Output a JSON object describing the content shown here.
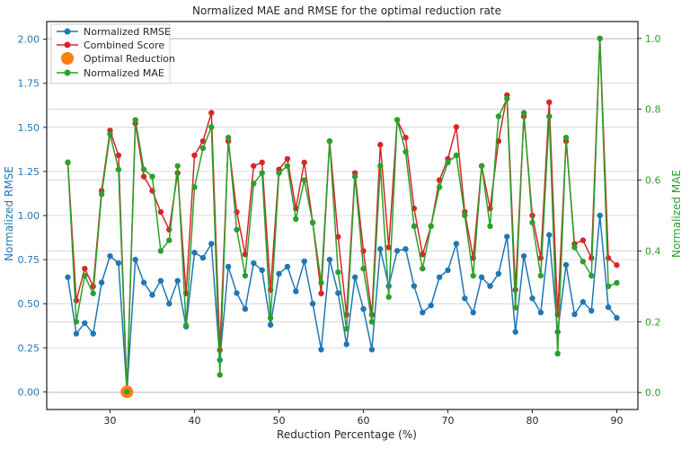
{
  "chart_data": {
    "type": "line",
    "title": "Normalized MAE and RMSE for the optimal reduction rate",
    "xlabel": "Reduction Percentage (%)",
    "ylabel": "Normalized RMSE",
    "y2label": "Normalized MAE",
    "xlim": [
      22.5,
      92.5
    ],
    "ylim": [
      -0.1,
      2.1
    ],
    "y2lim": [
      -0.0477,
      1.0477
    ],
    "xticks": [
      "30",
      "40",
      "50",
      "60",
      "70",
      "80",
      "90"
    ],
    "yticks": [
      "0.00",
      "0.25",
      "0.50",
      "0.75",
      "1.00",
      "1.25",
      "1.50",
      "1.75",
      "2.00"
    ],
    "y2ticks": [
      "0.0",
      "0.2",
      "0.4",
      "0.6",
      "0.8",
      "1.0"
    ],
    "colors": {
      "rmse": "#1f77b4",
      "combined": "#d62728",
      "optimal": "#ff7f0e",
      "mae": "#2ca02c"
    },
    "grid": true,
    "legend_position": "top-left",
    "legend": [
      "Normalized RMSE",
      "Combined Score",
      "Optimal Reduction",
      "Normalized MAE"
    ],
    "x": [
      25,
      26,
      27,
      28,
      29,
      30,
      31,
      32,
      33,
      34,
      35,
      36,
      37,
      38,
      39,
      40,
      41,
      42,
      43,
      44,
      45,
      46,
      47,
      48,
      49,
      50,
      51,
      52,
      53,
      54,
      55,
      56,
      57,
      58,
      59,
      60,
      61,
      62,
      63,
      64,
      65,
      66,
      67,
      68,
      69,
      70,
      71,
      72,
      73,
      74,
      75,
      76,
      77,
      78,
      79,
      80,
      81,
      82,
      83,
      84,
      85,
      86,
      87,
      88,
      89,
      90
    ],
    "series": [
      {
        "name": "Normalized RMSE",
        "axis": "left",
        "values": [
          0.65,
          0.33,
          0.39,
          0.33,
          0.62,
          0.77,
          0.73,
          0.0,
          0.75,
          0.62,
          0.55,
          0.63,
          0.5,
          0.63,
          0.37,
          0.79,
          0.76,
          0.84,
          0.18,
          0.71,
          0.56,
          0.47,
          0.73,
          0.69,
          0.38,
          0.67,
          0.71,
          0.57,
          0.74,
          0.5,
          0.24,
          0.75,
          0.56,
          0.27,
          0.65,
          0.47,
          0.24,
          0.81,
          0.6,
          0.8,
          0.81,
          0.6,
          0.45,
          0.49,
          0.65,
          0.69,
          0.84,
          0.53,
          0.45,
          0.65,
          0.6,
          0.67,
          0.88,
          0.34,
          0.77,
          0.53,
          0.45,
          0.89,
          0.34,
          0.72,
          0.44,
          0.51,
          0.46,
          1.0,
          0.48,
          0.42
        ]
      },
      {
        "name": "Combined Score",
        "axis": "right",
        "values": [
          0.65,
          0.26,
          0.35,
          0.3,
          0.57,
          0.74,
          0.67,
          0.0,
          0.76,
          0.61,
          0.57,
          0.51,
          0.46,
          0.62,
          0.28,
          0.67,
          0.71,
          0.79,
          0.12,
          0.71,
          0.51,
          0.39,
          0.64,
          0.65,
          0.29,
          0.63,
          0.66,
          0.52,
          0.65,
          0.48,
          0.28,
          0.71,
          0.44,
          0.22,
          0.62,
          0.4,
          0.22,
          0.7,
          0.41,
          0.77,
          0.72,
          0.52,
          0.39,
          0.47,
          0.6,
          0.66,
          0.75,
          0.51,
          0.38,
          0.64,
          0.52,
          0.71,
          0.84,
          0.29,
          0.78,
          0.5,
          0.38,
          0.82,
          0.22,
          0.71,
          0.42,
          0.43,
          0.38,
          1.0,
          0.38,
          0.36
        ]
      },
      {
        "name": "Normalized MAE",
        "axis": "right",
        "values": [
          0.65,
          0.2,
          0.33,
          0.28,
          0.56,
          0.73,
          0.63,
          0.0,
          0.77,
          0.63,
          0.61,
          0.4,
          0.43,
          0.64,
          0.19,
          0.58,
          0.69,
          0.75,
          0.05,
          0.72,
          0.46,
          0.33,
          0.59,
          0.62,
          0.21,
          0.62,
          0.64,
          0.49,
          0.6,
          0.48,
          0.31,
          0.71,
          0.34,
          0.18,
          0.61,
          0.35,
          0.2,
          0.64,
          0.27,
          0.77,
          0.68,
          0.47,
          0.35,
          0.47,
          0.58,
          0.65,
          0.67,
          0.5,
          0.33,
          0.64,
          0.47,
          0.78,
          0.83,
          0.24,
          0.79,
          0.48,
          0.33,
          0.78,
          0.11,
          0.72,
          0.41,
          0.37,
          0.33,
          1.0,
          0.3,
          0.31
        ]
      }
    ],
    "optimal_point": {
      "name": "Optimal Reduction",
      "x": 32,
      "y": 0.0
    }
  }
}
